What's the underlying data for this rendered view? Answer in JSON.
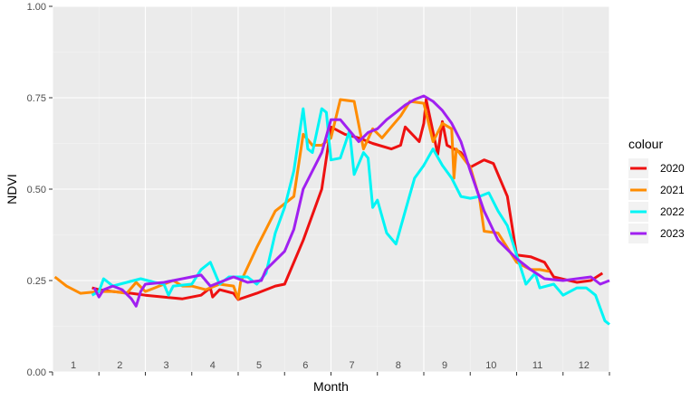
{
  "chart_data": {
    "type": "line",
    "title": "",
    "xlabel": "Month",
    "ylabel": "NDVI",
    "xlim": [
      0.5,
      12.5
    ],
    "ylim": [
      0,
      1
    ],
    "y_ticks": [
      "0.00",
      "0.25",
      "0.50",
      "0.75",
      "1.00"
    ],
    "y_tick_values": [
      0,
      0.25,
      0.5,
      0.75,
      1.0
    ],
    "month_labels": [
      "1",
      "2",
      "3",
      "4",
      "5",
      "6",
      "7",
      "8",
      "9",
      "10",
      "11",
      "12"
    ],
    "grid": true,
    "legend": {
      "title": "colour",
      "position": "right"
    },
    "series": [
      {
        "name": "2020",
        "color": "#ee1111",
        "points": [
          [
            0.85,
            0.23
          ],
          [
            1.0,
            0.225
          ],
          [
            1.3,
            0.22
          ],
          [
            1.7,
            0.215
          ],
          [
            2.0,
            0.21
          ],
          [
            2.4,
            0.205
          ],
          [
            2.8,
            0.2
          ],
          [
            3.2,
            0.21
          ],
          [
            3.4,
            0.23
          ],
          [
            3.45,
            0.205
          ],
          [
            3.6,
            0.225
          ],
          [
            3.9,
            0.215
          ],
          [
            4.0,
            0.198
          ],
          [
            4.4,
            0.215
          ],
          [
            4.8,
            0.235
          ],
          [
            5.0,
            0.24
          ],
          [
            5.4,
            0.36
          ],
          [
            5.8,
            0.5
          ],
          [
            6.0,
            0.67
          ],
          [
            6.3,
            0.65
          ],
          [
            6.6,
            0.64
          ],
          [
            6.9,
            0.625
          ],
          [
            7.3,
            0.61
          ],
          [
            7.5,
            0.62
          ],
          [
            7.6,
            0.67
          ],
          [
            7.9,
            0.63
          ],
          [
            8.0,
            0.68
          ],
          [
            8.05,
            0.745
          ],
          [
            8.3,
            0.595
          ],
          [
            8.4,
            0.685
          ],
          [
            8.5,
            0.62
          ],
          [
            8.8,
            0.6
          ],
          [
            9.0,
            0.56
          ],
          [
            9.3,
            0.58
          ],
          [
            9.5,
            0.57
          ],
          [
            9.8,
            0.48
          ],
          [
            10.0,
            0.32
          ],
          [
            10.3,
            0.315
          ],
          [
            10.6,
            0.3
          ],
          [
            10.8,
            0.26
          ],
          [
            11.3,
            0.245
          ],
          [
            11.6,
            0.25
          ],
          [
            11.85,
            0.27
          ]
        ]
      },
      {
        "name": "2021",
        "color": "#ff8c00",
        "points": [
          [
            0.05,
            0.26
          ],
          [
            0.3,
            0.235
          ],
          [
            0.6,
            0.215
          ],
          [
            1.0,
            0.22
          ],
          [
            1.3,
            0.22
          ],
          [
            1.6,
            0.215
          ],
          [
            1.8,
            0.245
          ],
          [
            2.0,
            0.22
          ],
          [
            2.2,
            0.23
          ],
          [
            2.4,
            0.24
          ],
          [
            2.6,
            0.25
          ],
          [
            2.8,
            0.235
          ],
          [
            3.0,
            0.235
          ],
          [
            3.3,
            0.225
          ],
          [
            3.6,
            0.24
          ],
          [
            3.9,
            0.235
          ],
          [
            4.0,
            0.2
          ],
          [
            4.05,
            0.245
          ],
          [
            4.4,
            0.34
          ],
          [
            4.8,
            0.44
          ],
          [
            5.2,
            0.48
          ],
          [
            5.4,
            0.65
          ],
          [
            5.6,
            0.62
          ],
          [
            5.8,
            0.62
          ],
          [
            6.0,
            0.64
          ],
          [
            6.2,
            0.745
          ],
          [
            6.5,
            0.74
          ],
          [
            6.7,
            0.61
          ],
          [
            6.9,
            0.665
          ],
          [
            7.1,
            0.64
          ],
          [
            7.3,
            0.67
          ],
          [
            7.5,
            0.7
          ],
          [
            7.7,
            0.74
          ],
          [
            8.0,
            0.735
          ],
          [
            8.2,
            0.63
          ],
          [
            8.4,
            0.68
          ],
          [
            8.6,
            0.665
          ],
          [
            8.65,
            0.53
          ],
          [
            8.7,
            0.61
          ],
          [
            9.0,
            0.56
          ],
          [
            9.2,
            0.475
          ],
          [
            9.3,
            0.385
          ],
          [
            9.6,
            0.38
          ],
          [
            10.0,
            0.3
          ],
          [
            10.3,
            0.28
          ],
          [
            10.5,
            0.28
          ],
          [
            10.7,
            0.275
          ]
        ]
      },
      {
        "name": "2022",
        "color": "#00f5f5",
        "points": [
          [
            0.85,
            0.21
          ],
          [
            1.0,
            0.22
          ],
          [
            1.1,
            0.255
          ],
          [
            1.3,
            0.235
          ],
          [
            1.6,
            0.245
          ],
          [
            1.9,
            0.255
          ],
          [
            2.2,
            0.245
          ],
          [
            2.4,
            0.24
          ],
          [
            2.5,
            0.21
          ],
          [
            2.6,
            0.235
          ],
          [
            3.0,
            0.24
          ],
          [
            3.2,
            0.28
          ],
          [
            3.4,
            0.3
          ],
          [
            3.6,
            0.24
          ],
          [
            3.8,
            0.26
          ],
          [
            4.0,
            0.26
          ],
          [
            4.2,
            0.26
          ],
          [
            4.4,
            0.24
          ],
          [
            4.6,
            0.27
          ],
          [
            4.8,
            0.38
          ],
          [
            5.0,
            0.45
          ],
          [
            5.2,
            0.55
          ],
          [
            5.4,
            0.72
          ],
          [
            5.5,
            0.61
          ],
          [
            5.6,
            0.6
          ],
          [
            5.8,
            0.72
          ],
          [
            5.9,
            0.71
          ],
          [
            6.0,
            0.58
          ],
          [
            6.2,
            0.585
          ],
          [
            6.4,
            0.66
          ],
          [
            6.5,
            0.54
          ],
          [
            6.7,
            0.6
          ],
          [
            6.8,
            0.585
          ],
          [
            6.9,
            0.45
          ],
          [
            7.0,
            0.47
          ],
          [
            7.2,
            0.38
          ],
          [
            7.4,
            0.35
          ],
          [
            7.6,
            0.44
          ],
          [
            7.8,
            0.53
          ],
          [
            8.0,
            0.565
          ],
          [
            8.2,
            0.61
          ],
          [
            8.4,
            0.565
          ],
          [
            8.6,
            0.53
          ],
          [
            8.8,
            0.48
          ],
          [
            9.0,
            0.475
          ],
          [
            9.2,
            0.48
          ],
          [
            9.4,
            0.49
          ],
          [
            9.6,
            0.44
          ],
          [
            9.8,
            0.4
          ],
          [
            10.0,
            0.32
          ],
          [
            10.2,
            0.24
          ],
          [
            10.4,
            0.27
          ],
          [
            10.5,
            0.23
          ],
          [
            10.8,
            0.24
          ],
          [
            11.0,
            0.21
          ],
          [
            11.3,
            0.23
          ],
          [
            11.5,
            0.23
          ],
          [
            11.6,
            0.22
          ],
          [
            11.7,
            0.21
          ],
          [
            11.9,
            0.14
          ],
          [
            12.0,
            0.13
          ]
        ]
      },
      {
        "name": "2023",
        "color": "#a020f0",
        "points": [
          [
            0.9,
            0.23
          ],
          [
            1.0,
            0.205
          ],
          [
            1.1,
            0.225
          ],
          [
            1.3,
            0.235
          ],
          [
            1.5,
            0.225
          ],
          [
            1.7,
            0.2
          ],
          [
            1.8,
            0.18
          ],
          [
            1.9,
            0.22
          ],
          [
            2.0,
            0.24
          ],
          [
            2.4,
            0.245
          ],
          [
            2.8,
            0.255
          ],
          [
            3.2,
            0.265
          ],
          [
            3.4,
            0.235
          ],
          [
            3.7,
            0.25
          ],
          [
            3.9,
            0.26
          ],
          [
            4.0,
            0.255
          ],
          [
            4.2,
            0.245
          ],
          [
            4.5,
            0.25
          ],
          [
            4.6,
            0.28
          ],
          [
            5.0,
            0.33
          ],
          [
            5.2,
            0.39
          ],
          [
            5.4,
            0.5
          ],
          [
            5.8,
            0.6
          ],
          [
            6.0,
            0.69
          ],
          [
            6.2,
            0.69
          ],
          [
            6.4,
            0.66
          ],
          [
            6.6,
            0.63
          ],
          [
            6.8,
            0.655
          ],
          [
            7.0,
            0.665
          ],
          [
            7.2,
            0.69
          ],
          [
            7.4,
            0.71
          ],
          [
            7.6,
            0.73
          ],
          [
            7.8,
            0.745
          ],
          [
            8.0,
            0.755
          ],
          [
            8.2,
            0.74
          ],
          [
            8.4,
            0.715
          ],
          [
            8.6,
            0.68
          ],
          [
            8.8,
            0.63
          ],
          [
            9.0,
            0.55
          ],
          [
            9.3,
            0.44
          ],
          [
            9.6,
            0.36
          ],
          [
            10.0,
            0.31
          ],
          [
            10.3,
            0.28
          ],
          [
            10.6,
            0.255
          ],
          [
            11.0,
            0.25
          ],
          [
            11.3,
            0.255
          ],
          [
            11.6,
            0.26
          ],
          [
            11.8,
            0.24
          ],
          [
            12.0,
            0.25
          ]
        ]
      }
    ]
  }
}
